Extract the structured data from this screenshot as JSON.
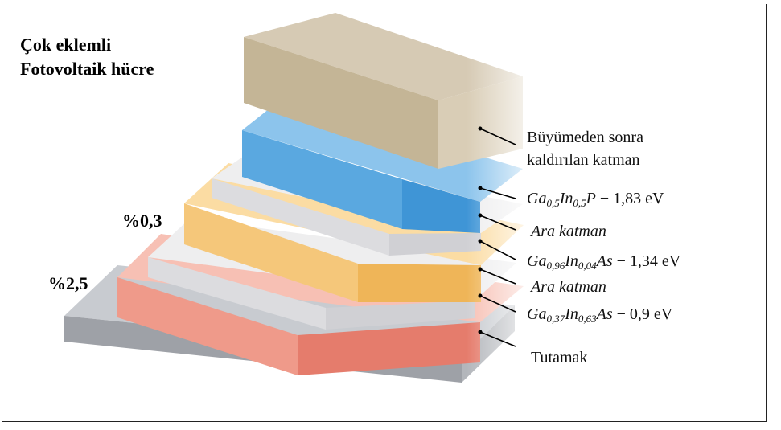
{
  "title": {
    "line1": "Çok eklemli",
    "line2": "Fotovoltaik hücre"
  },
  "thickness_labels": {
    "upper": "%0,3",
    "lower": "%2,5"
  },
  "layers": [
    {
      "id": "removed",
      "label_line1": "Büyümeden sonra",
      "label_line2": "kaldırılan katman",
      "color": "#c8b89a"
    },
    {
      "id": "gainp",
      "formula": {
        "el1": "Ga",
        "sub1": "0,5",
        "el2": "In",
        "sub2": "0,5",
        "el3": "P",
        "energy": " − 1,83 eV"
      },
      "color": "#4aa3e0"
    },
    {
      "id": "ara1",
      "label": "Ara katman",
      "color": "#e6e6ea"
    },
    {
      "id": "gainas1",
      "formula": {
        "el1": "Ga",
        "sub1": "0,96",
        "el2": "In",
        "sub2": "0,04",
        "el3": "As",
        "energy": " − 1,34 eV"
      },
      "color": "#f5c36c"
    },
    {
      "id": "ara2",
      "label": "Ara katman",
      "color": "#e6e6ea"
    },
    {
      "id": "gainas2",
      "formula": {
        "el1": "Ga",
        "sub1": "0,37",
        "el2": "In",
        "sub2": "0,63",
        "el3": "As",
        "energy": " − 0,9 eV"
      },
      "color": "#ef8a7c"
    },
    {
      "id": "handle",
      "label": "Tutamak",
      "color": "#b9bcc2"
    }
  ]
}
